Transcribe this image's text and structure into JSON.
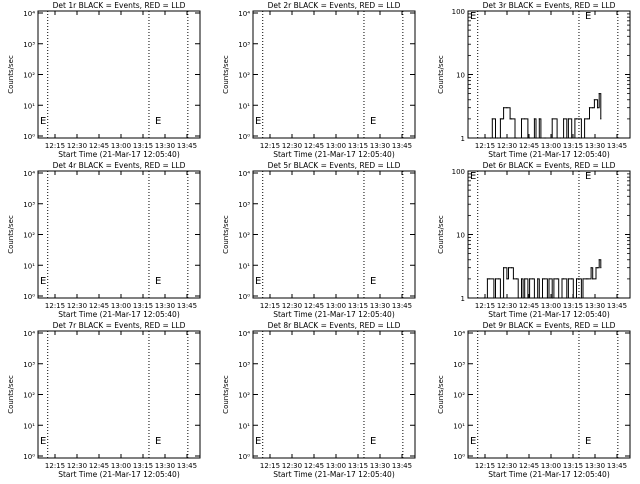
{
  "chart_data": [
    {
      "type": "line",
      "title": "Det 1r BLACK = Events, RED = LLD",
      "xlabel": "Start Time (21-Mar-17 12:05:40)",
      "ylabel": "Counts/sec",
      "yscale": "log",
      "ylim": [
        0.9,
        10000
      ],
      "yticks": [
        "10⁰",
        "10¹",
        "10²",
        "10³",
        "10⁴"
      ],
      "xlim": [
        0,
        100
      ],
      "xticks": [
        "12:15",
        "12:30",
        "12:45",
        "13:00",
        "13:15",
        "13:30",
        "13:45"
      ],
      "markers": [
        "E",
        "E"
      ],
      "series": []
    },
    {
      "type": "line",
      "title": "Det 2r BLACK = Events, RED = LLD",
      "xlabel": "Start Time (21-Mar-17 12:05:40)",
      "ylabel": "Counts/sec",
      "yscale": "log",
      "ylim": [
        0.9,
        10000
      ],
      "yticks": [
        "10⁰",
        "10¹",
        "10²",
        "10³",
        "10⁴"
      ],
      "xlim": [
        0,
        100
      ],
      "xticks": [
        "12:15",
        "12:30",
        "12:45",
        "13:00",
        "13:15",
        "13:30",
        "13:45"
      ],
      "markers": [
        "E",
        "E"
      ],
      "series": []
    },
    {
      "type": "line",
      "title": "Det 3r BLACK = Events, RED = LLD",
      "xlabel": "Start Time (21-Mar-17 12:05:40)",
      "ylabel": "Counts/sec",
      "yscale": "log",
      "ylim": [
        1,
        100
      ],
      "yticks": [
        "1",
        "10",
        "100"
      ],
      "xlim": [
        0,
        100
      ],
      "xticks": [
        "12:15",
        "12:30",
        "12:45",
        "13:00",
        "13:15",
        "13:30",
        "13:45"
      ],
      "markers": [
        "E",
        "E"
      ],
      "series": [
        {
          "color": "#000000",
          "x": [
            11,
            14,
            15,
            17,
            18,
            20,
            21,
            22,
            24,
            26,
            27,
            29,
            30,
            33,
            35,
            37,
            38,
            41,
            42,
            44,
            45,
            47,
            48,
            52,
            55,
            57,
            59,
            61,
            62,
            64,
            66,
            67,
            70,
            72,
            74,
            75,
            77,
            78,
            80,
            81,
            82
          ],
          "y": [
            1,
            1,
            2,
            1,
            1,
            2,
            2,
            3,
            3,
            2,
            2,
            1,
            1,
            2,
            2,
            1,
            1,
            2,
            1,
            2,
            1,
            1,
            1,
            2,
            1,
            1,
            2,
            1,
            2,
            1,
            2,
            2,
            1,
            2,
            2,
            3,
            3,
            4,
            3,
            5,
            2
          ]
        }
      ]
    },
    {
      "type": "line",
      "title": "Det 4r BLACK = Events, RED = LLD",
      "xlabel": "Start Time (21-Mar-17 12:05:40)",
      "ylabel": "Counts/sec",
      "yscale": "log",
      "ylim": [
        0.9,
        10000
      ],
      "yticks": [
        "10⁰",
        "10¹",
        "10²",
        "10³",
        "10⁴"
      ],
      "xlim": [
        0,
        100
      ],
      "xticks": [
        "12:15",
        "12:30",
        "12:45",
        "13:00",
        "13:15",
        "13:30",
        "13:45"
      ],
      "markers": [
        "E",
        "E"
      ],
      "series": []
    },
    {
      "type": "line",
      "title": "Det 5r BLACK = Events, RED = LLD",
      "xlabel": "Start Time (21-Mar-17 12:05:40)",
      "ylabel": "Counts/sec",
      "yscale": "log",
      "ylim": [
        0.9,
        10000
      ],
      "yticks": [
        "10⁰",
        "10¹",
        "10²",
        "10³",
        "10⁴"
      ],
      "xlim": [
        0,
        100
      ],
      "xticks": [
        "12:15",
        "12:30",
        "12:45",
        "13:00",
        "13:15",
        "13:30",
        "13:45"
      ],
      "markers": [
        "E",
        "E"
      ],
      "series": []
    },
    {
      "type": "line",
      "title": "Det 6r BLACK = Events, RED = LLD",
      "xlabel": "Start Time (21-Mar-17 12:05:40)",
      "ylabel": "Counts/sec",
      "yscale": "log",
      "ylim": [
        1,
        100
      ],
      "yticks": [
        "1",
        "10",
        "100"
      ],
      "xlim": [
        0,
        100
      ],
      "xticks": [
        "12:15",
        "12:30",
        "12:45",
        "13:00",
        "13:15",
        "13:30",
        "13:45"
      ],
      "markers": [
        "E",
        "E"
      ],
      "series": [
        {
          "color": "#000000",
          "x": [
            10,
            12,
            13,
            16,
            17,
            19,
            20,
            22,
            24,
            25,
            27,
            28,
            30,
            31,
            33,
            34,
            35,
            37,
            38,
            40,
            41,
            43,
            44,
            46,
            47,
            49,
            50,
            52,
            53,
            55,
            56,
            58,
            59,
            61,
            62,
            64,
            65,
            67,
            68,
            70,
            71,
            73,
            74,
            76,
            77,
            79,
            80,
            81,
            82
          ],
          "y": [
            1,
            2,
            2,
            1,
            2,
            2,
            1,
            3,
            2,
            3,
            3,
            2,
            2,
            1,
            2,
            1,
            2,
            1,
            2,
            2,
            1,
            2,
            1,
            2,
            2,
            1,
            2,
            1,
            2,
            2,
            1,
            2,
            2,
            1,
            2,
            2,
            1,
            2,
            2,
            1,
            2,
            2,
            2,
            3,
            2,
            3,
            3,
            4,
            3
          ]
        }
      ]
    },
    {
      "type": "line",
      "title": "Det 7r BLACK = Events, RED = LLD",
      "xlabel": "Start Time (21-Mar-17 12:05:40)",
      "ylabel": "Counts/sec",
      "yscale": "log",
      "ylim": [
        0.9,
        10000
      ],
      "yticks": [
        "10⁰",
        "10¹",
        "10²",
        "10³",
        "10⁴"
      ],
      "xlim": [
        0,
        100
      ],
      "xticks": [
        "12:15",
        "12:30",
        "12:45",
        "13:00",
        "13:15",
        "13:30",
        "13:45"
      ],
      "markers": [
        "E",
        "E"
      ],
      "series": []
    },
    {
      "type": "line",
      "title": "Det 8r BLACK = Events, RED = LLD",
      "xlabel": "Start Time (21-Mar-17 12:05:40)",
      "ylabel": "Counts/sec",
      "yscale": "log",
      "ylim": [
        0.9,
        10000
      ],
      "yticks": [
        "10⁰",
        "10¹",
        "10²",
        "10³",
        "10⁴"
      ],
      "xlim": [
        0,
        100
      ],
      "xticks": [
        "12:15",
        "12:30",
        "12:45",
        "13:00",
        "13:15",
        "13:30",
        "13:45"
      ],
      "markers": [
        "E",
        "E"
      ],
      "series": []
    },
    {
      "type": "line",
      "title": "Det 9r BLACK = Events, RED = LLD",
      "xlabel": "Start Time (21-Mar-17 12:05:40)",
      "ylabel": "Counts/sec",
      "yscale": "log",
      "ylim": [
        0.9,
        10000
      ],
      "yticks": [
        "10⁰",
        "10¹",
        "10²",
        "10³",
        "10⁴"
      ],
      "xlim": [
        0,
        100
      ],
      "xticks": [
        "12:15",
        "12:30",
        "12:45",
        "13:00",
        "13:15",
        "13:30",
        "13:45"
      ],
      "markers": [
        "E",
        "E"
      ],
      "series": []
    }
  ]
}
